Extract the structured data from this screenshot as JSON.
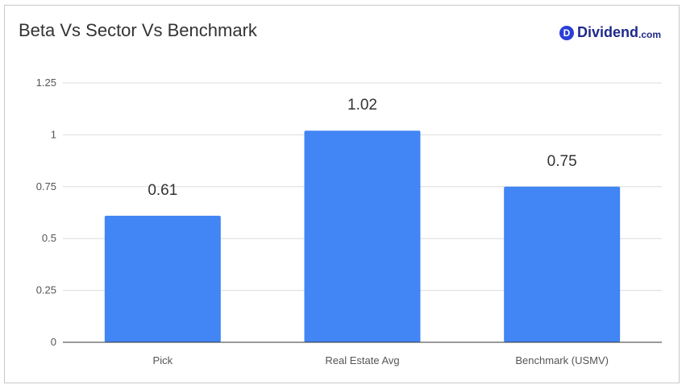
{
  "chart_data": {
    "type": "bar",
    "title": "Beta Vs Sector Vs Benchmark",
    "categories": [
      "Pick",
      "Real Estate Avg",
      "Benchmark (USMV)"
    ],
    "values": [
      0.61,
      1.02,
      0.75
    ],
    "data_labels": [
      "0.61",
      "1.02",
      "0.75"
    ],
    "y_ticks": [
      "0",
      "0.25",
      "0.5",
      "0.75",
      "1",
      "1.25"
    ],
    "y_tick_values": [
      0,
      0.25,
      0.5,
      0.75,
      1,
      1.25
    ],
    "ylim": [
      0,
      1.25
    ],
    "grid": true,
    "bar_color": "#4285f4"
  },
  "brand": {
    "logo_letter": "D",
    "name": "Dividend",
    "suffix": ".com",
    "color": "#1f2a8a"
  }
}
